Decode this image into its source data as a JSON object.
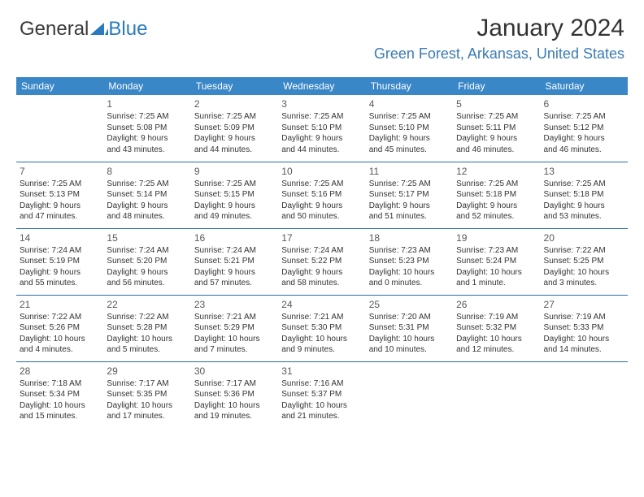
{
  "logo": {
    "text1": "General",
    "text2": "Blue"
  },
  "header": {
    "month_title": "January 2024",
    "location": "Green Forest, Arkansas, United States"
  },
  "colors": {
    "header_bg": "#3a87c7",
    "header_fg": "#ffffff",
    "row_border": "#2a6fa8",
    "location_color": "#3a7bb5",
    "daynum_color": "#595959",
    "body_text": "#333333",
    "logo_gray": "#3a3a3a",
    "logo_blue": "#2a7bbf"
  },
  "weekdays": [
    "Sunday",
    "Monday",
    "Tuesday",
    "Wednesday",
    "Thursday",
    "Friday",
    "Saturday"
  ],
  "weeks": [
    [
      null,
      {
        "n": "1",
        "sr": "Sunrise: 7:25 AM",
        "ss": "Sunset: 5:08 PM",
        "d1": "Daylight: 9 hours",
        "d2": "and 43 minutes."
      },
      {
        "n": "2",
        "sr": "Sunrise: 7:25 AM",
        "ss": "Sunset: 5:09 PM",
        "d1": "Daylight: 9 hours",
        "d2": "and 44 minutes."
      },
      {
        "n": "3",
        "sr": "Sunrise: 7:25 AM",
        "ss": "Sunset: 5:10 PM",
        "d1": "Daylight: 9 hours",
        "d2": "and 44 minutes."
      },
      {
        "n": "4",
        "sr": "Sunrise: 7:25 AM",
        "ss": "Sunset: 5:10 PM",
        "d1": "Daylight: 9 hours",
        "d2": "and 45 minutes."
      },
      {
        "n": "5",
        "sr": "Sunrise: 7:25 AM",
        "ss": "Sunset: 5:11 PM",
        "d1": "Daylight: 9 hours",
        "d2": "and 46 minutes."
      },
      {
        "n": "6",
        "sr": "Sunrise: 7:25 AM",
        "ss": "Sunset: 5:12 PM",
        "d1": "Daylight: 9 hours",
        "d2": "and 46 minutes."
      }
    ],
    [
      {
        "n": "7",
        "sr": "Sunrise: 7:25 AM",
        "ss": "Sunset: 5:13 PM",
        "d1": "Daylight: 9 hours",
        "d2": "and 47 minutes."
      },
      {
        "n": "8",
        "sr": "Sunrise: 7:25 AM",
        "ss": "Sunset: 5:14 PM",
        "d1": "Daylight: 9 hours",
        "d2": "and 48 minutes."
      },
      {
        "n": "9",
        "sr": "Sunrise: 7:25 AM",
        "ss": "Sunset: 5:15 PM",
        "d1": "Daylight: 9 hours",
        "d2": "and 49 minutes."
      },
      {
        "n": "10",
        "sr": "Sunrise: 7:25 AM",
        "ss": "Sunset: 5:16 PM",
        "d1": "Daylight: 9 hours",
        "d2": "and 50 minutes."
      },
      {
        "n": "11",
        "sr": "Sunrise: 7:25 AM",
        "ss": "Sunset: 5:17 PM",
        "d1": "Daylight: 9 hours",
        "d2": "and 51 minutes."
      },
      {
        "n": "12",
        "sr": "Sunrise: 7:25 AM",
        "ss": "Sunset: 5:18 PM",
        "d1": "Daylight: 9 hours",
        "d2": "and 52 minutes."
      },
      {
        "n": "13",
        "sr": "Sunrise: 7:25 AM",
        "ss": "Sunset: 5:18 PM",
        "d1": "Daylight: 9 hours",
        "d2": "and 53 minutes."
      }
    ],
    [
      {
        "n": "14",
        "sr": "Sunrise: 7:24 AM",
        "ss": "Sunset: 5:19 PM",
        "d1": "Daylight: 9 hours",
        "d2": "and 55 minutes."
      },
      {
        "n": "15",
        "sr": "Sunrise: 7:24 AM",
        "ss": "Sunset: 5:20 PM",
        "d1": "Daylight: 9 hours",
        "d2": "and 56 minutes."
      },
      {
        "n": "16",
        "sr": "Sunrise: 7:24 AM",
        "ss": "Sunset: 5:21 PM",
        "d1": "Daylight: 9 hours",
        "d2": "and 57 minutes."
      },
      {
        "n": "17",
        "sr": "Sunrise: 7:24 AM",
        "ss": "Sunset: 5:22 PM",
        "d1": "Daylight: 9 hours",
        "d2": "and 58 minutes."
      },
      {
        "n": "18",
        "sr": "Sunrise: 7:23 AM",
        "ss": "Sunset: 5:23 PM",
        "d1": "Daylight: 10 hours",
        "d2": "and 0 minutes."
      },
      {
        "n": "19",
        "sr": "Sunrise: 7:23 AM",
        "ss": "Sunset: 5:24 PM",
        "d1": "Daylight: 10 hours",
        "d2": "and 1 minute."
      },
      {
        "n": "20",
        "sr": "Sunrise: 7:22 AM",
        "ss": "Sunset: 5:25 PM",
        "d1": "Daylight: 10 hours",
        "d2": "and 3 minutes."
      }
    ],
    [
      {
        "n": "21",
        "sr": "Sunrise: 7:22 AM",
        "ss": "Sunset: 5:26 PM",
        "d1": "Daylight: 10 hours",
        "d2": "and 4 minutes."
      },
      {
        "n": "22",
        "sr": "Sunrise: 7:22 AM",
        "ss": "Sunset: 5:28 PM",
        "d1": "Daylight: 10 hours",
        "d2": "and 5 minutes."
      },
      {
        "n": "23",
        "sr": "Sunrise: 7:21 AM",
        "ss": "Sunset: 5:29 PM",
        "d1": "Daylight: 10 hours",
        "d2": "and 7 minutes."
      },
      {
        "n": "24",
        "sr": "Sunrise: 7:21 AM",
        "ss": "Sunset: 5:30 PM",
        "d1": "Daylight: 10 hours",
        "d2": "and 9 minutes."
      },
      {
        "n": "25",
        "sr": "Sunrise: 7:20 AM",
        "ss": "Sunset: 5:31 PM",
        "d1": "Daylight: 10 hours",
        "d2": "and 10 minutes."
      },
      {
        "n": "26",
        "sr": "Sunrise: 7:19 AM",
        "ss": "Sunset: 5:32 PM",
        "d1": "Daylight: 10 hours",
        "d2": "and 12 minutes."
      },
      {
        "n": "27",
        "sr": "Sunrise: 7:19 AM",
        "ss": "Sunset: 5:33 PM",
        "d1": "Daylight: 10 hours",
        "d2": "and 14 minutes."
      }
    ],
    [
      {
        "n": "28",
        "sr": "Sunrise: 7:18 AM",
        "ss": "Sunset: 5:34 PM",
        "d1": "Daylight: 10 hours",
        "d2": "and 15 minutes."
      },
      {
        "n": "29",
        "sr": "Sunrise: 7:17 AM",
        "ss": "Sunset: 5:35 PM",
        "d1": "Daylight: 10 hours",
        "d2": "and 17 minutes."
      },
      {
        "n": "30",
        "sr": "Sunrise: 7:17 AM",
        "ss": "Sunset: 5:36 PM",
        "d1": "Daylight: 10 hours",
        "d2": "and 19 minutes."
      },
      {
        "n": "31",
        "sr": "Sunrise: 7:16 AM",
        "ss": "Sunset: 5:37 PM",
        "d1": "Daylight: 10 hours",
        "d2": "and 21 minutes."
      },
      null,
      null,
      null
    ]
  ]
}
